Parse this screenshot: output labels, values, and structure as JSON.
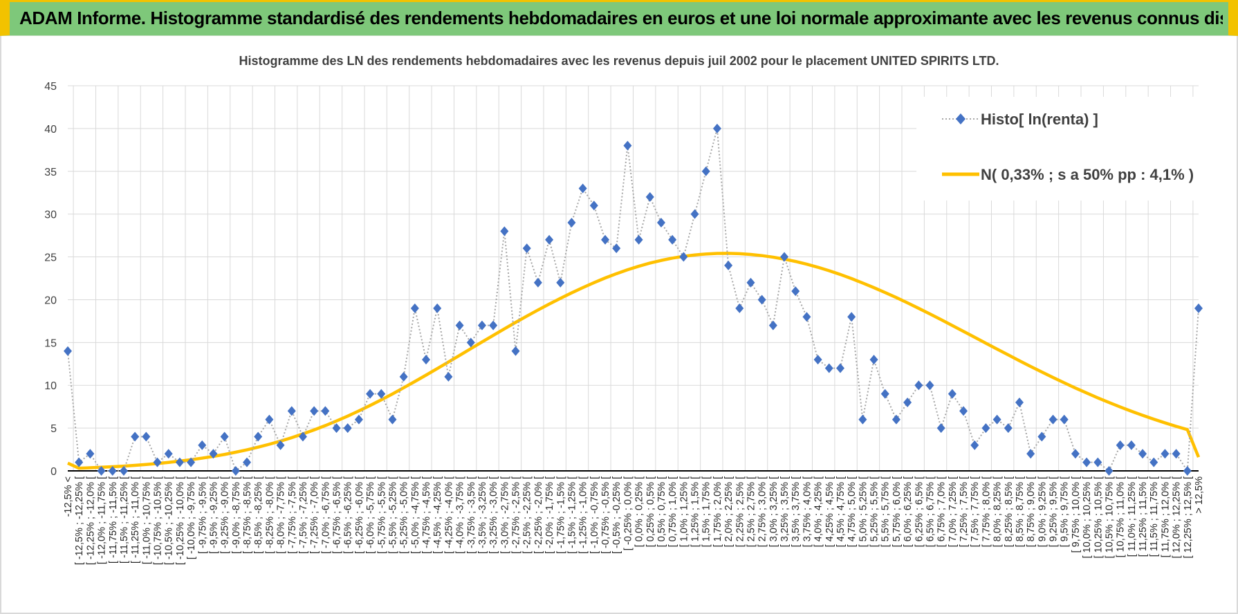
{
  "header": {
    "title": "ADAM Informe. Histogramme standardisé des rendements hebdomadaires en euros et une loi normale approximante avec les revenus connus distribués"
  },
  "chart_data": {
    "type": "line",
    "title": "Histogramme des LN des rendements hebdomadaires avec les revenus depuis juil 2002 pour le placement UNITED SPIRITS LTD.",
    "ylim": [
      0,
      45
    ],
    "yticks": [
      0,
      5,
      10,
      15,
      20,
      25,
      30,
      35,
      40,
      45
    ],
    "grid": true,
    "legend_position": "top-right",
    "categories": [
      "-12,5% <",
      "[ -12,5% ; -12,25% [",
      "[ -12,25% ; -12,0% [",
      "[ -12,0% ; -11,75% [",
      "[ -11,75% ; -11,5% [",
      "[ -11,5% ; -11,25% [",
      "[ -11,25% ; -11,0% [",
      "[ -11,0% ; -10,75% [",
      "[ -10,75% ; -10,5% [",
      "[ -10,5% ; -10,25% [",
      "[ -10,25% ; -10,0% [",
      "[ -10,0% ; -9,75% [",
      "[ -9,75% ; -9,5% [",
      "[ -9,5% ; -9,25% [",
      "[ -9,25% ; -9,0% [",
      "[ -9,0% ; -8,75% [",
      "[ -8,75% ; -8,5% [",
      "[ -8,5% ; -8,25% [",
      "[ -8,25% ; -8,0% [",
      "[ -8,0% ; -7,75% [",
      "[ -7,75% ; -7,5% [",
      "[ -7,5% ; -7,25% [",
      "[ -7,25% ; -7,0% [",
      "[ -7,0% ; -6,75% [",
      "[ -6,75% ; -6,5% [",
      "[ -6,5% ; -6,25% [",
      "[ -6,25% ; -6,0% [",
      "[ -6,0% ; -5,75% [",
      "[ -5,75% ; -5,5% [",
      "[ -5,5% ; -5,25% [",
      "[ -5,25% ; -5,0% [",
      "[ -5,0% ; -4,75% [",
      "[ -4,75% ; -4,5% [",
      "[ -4,5% ; -4,25% [",
      "[ -4,25% ; -4,0% [",
      "[ -4,0% ; -3,75% [",
      "[ -3,75% ; -3,5% [",
      "[ -3,5% ; -3,25% [",
      "[ -3,25% ; -3,0% [",
      "[ -3,0% ; -2,75% [",
      "[ -2,75% ; -2,5% [",
      "[ -2,5% ; -2,25% [",
      "[ -2,25% ; -2,0% [",
      "[ -2,0% ; -1,75% [",
      "[ -1,75% ; -1,5% [",
      "[ -1,5% ; -1,25% [",
      "[ -1,25% ; -1,0% [",
      "[ -1,0% ; -0,75% [",
      "[ -0,75% ; -0,5% [",
      "[ -0,5% ; -0,25% [",
      "[ -0,25% ; 0,0% [",
      "[ 0,0% ; 0,25% [",
      "[ 0,25% ; 0,5% [",
      "[ 0,5% ; 0,75% [",
      "[ 0,75% ; 1,0% [",
      "[ 1,0% ; 1,25% [",
      "[ 1,25% ; 1,5% [",
      "[ 1,5% ; 1,75% [",
      "[ 1,75% ; 2,0% [",
      "[ 2,0% ; 2,25% [",
      "[ 2,25% ; 2,5% [",
      "[ 2,5% ; 2,75% [",
      "[ 2,75% ; 3,0% [",
      "[ 3,0% ; 3,25% [",
      "[ 3,25% ; 3,5% [",
      "[ 3,5% ; 3,75% [",
      "[ 3,75% ; 4,0% [",
      "[ 4,0% ; 4,25% [",
      "[ 4,25% ; 4,5% [",
      "[ 4,5% ; 4,75% [",
      "[ 4,75% ; 5,0% [",
      "[ 5,0% ; 5,25% [",
      "[ 5,25% ; 5,5% [",
      "[ 5,5% ; 5,75% [",
      "[ 5,75% ; 6,0% [",
      "[ 6,0% ; 6,25% [",
      "[ 6,25% ; 6,5% [",
      "[ 6,5% ; 6,75% [",
      "[ 6,75% ; 7,0% [",
      "[ 7,0% ; 7,25% [",
      "[ 7,25% ; 7,5% [",
      "[ 7,5% ; 7,75% [",
      "[ 7,75% ; 8,0% [",
      "[ 8,0% ; 8,25% [",
      "[ 8,25% ; 8,5% [",
      "[ 8,5% ; 8,75% [",
      "[ 8,75% ; 9,0% [",
      "[ 9,0% ; 9,25% [",
      "[ 9,25% ; 9,5% [",
      "[ 9,5% ; 9,75% [",
      "[ 9,75% ; 10,0% [",
      "[ 10,0% ; 10,25% [",
      "[ 10,25% ; 10,5% [",
      "[ 10,5% ; 10,75% [",
      "[ 10,75% ; 11,0% [",
      "[ 11,0% ; 11,25% [",
      "[ 11,25% ; 11,5% [",
      "[ 11,5% ; 11,75% [",
      "[ 11,75% ; 12,0% [",
      "[ 12,0% ; 12,25% [",
      "[ 12,25% ; 12,5% [",
      "> 12,5%"
    ],
    "series": [
      {
        "name": "Histo[ ln(renta) ]",
        "color": "#4472c4",
        "style": "dotted-with-diamonds",
        "values": [
          14,
          1,
          2,
          0,
          0,
          0,
          4,
          4,
          1,
          2,
          1,
          1,
          3,
          2,
          4,
          0,
          1,
          4,
          6,
          3,
          7,
          4,
          7,
          7,
          5,
          5,
          6,
          9,
          9,
          6,
          11,
          19,
          13,
          19,
          11,
          17,
          15,
          17,
          17,
          28,
          14,
          26,
          22,
          27,
          22,
          29,
          33,
          31,
          27,
          26,
          38,
          27,
          32,
          29,
          27,
          25,
          30,
          35,
          40,
          24,
          19,
          22,
          20,
          17,
          25,
          21,
          18,
          13,
          12,
          12,
          18,
          6,
          13,
          9,
          6,
          8,
          10,
          10,
          5,
          9,
          7,
          3,
          5,
          6,
          5,
          8,
          2,
          4,
          6,
          6,
          2,
          1,
          1,
          0,
          3,
          3,
          2,
          1,
          2,
          2,
          0,
          19
        ]
      },
      {
        "name": "N( 0,33% ; s a 50% pp : 4,1% )",
        "color": "#ffc000",
        "style": "solid-thick",
        "values": [
          0.9,
          0.31,
          0.36,
          0.42,
          0.48,
          0.56,
          0.65,
          0.75,
          0.86,
          0.99,
          1.14,
          1.3,
          1.49,
          1.69,
          1.92,
          2.18,
          2.46,
          2.77,
          3.11,
          3.48,
          3.88,
          4.32,
          4.79,
          5.29,
          5.83,
          6.4,
          7.01,
          7.64,
          8.3,
          8.99,
          9.71,
          10.44,
          11.19,
          11.95,
          12.72,
          13.5,
          14.28,
          15.06,
          15.83,
          16.6,
          17.35,
          18.08,
          18.8,
          19.49,
          20.16,
          20.8,
          21.41,
          21.99,
          22.54,
          23.04,
          23.5,
          23.91,
          24.28,
          24.59,
          24.86,
          25.07,
          25.23,
          25.34,
          25.41,
          25.42,
          25.38,
          25.29,
          25.15,
          24.97,
          24.74,
          24.47,
          24.15,
          23.79,
          23.39,
          22.95,
          22.47,
          21.95,
          21.41,
          20.84,
          20.25,
          19.63,
          18.99,
          18.34,
          17.67,
          16.99,
          16.3,
          15.61,
          14.92,
          14.23,
          13.55,
          12.87,
          12.2,
          11.55,
          10.91,
          10.29,
          9.68,
          9.1,
          8.53,
          7.99,
          7.47,
          6.97,
          6.49,
          6.04,
          5.61,
          5.2,
          4.82,
          1.6
        ]
      }
    ]
  }
}
